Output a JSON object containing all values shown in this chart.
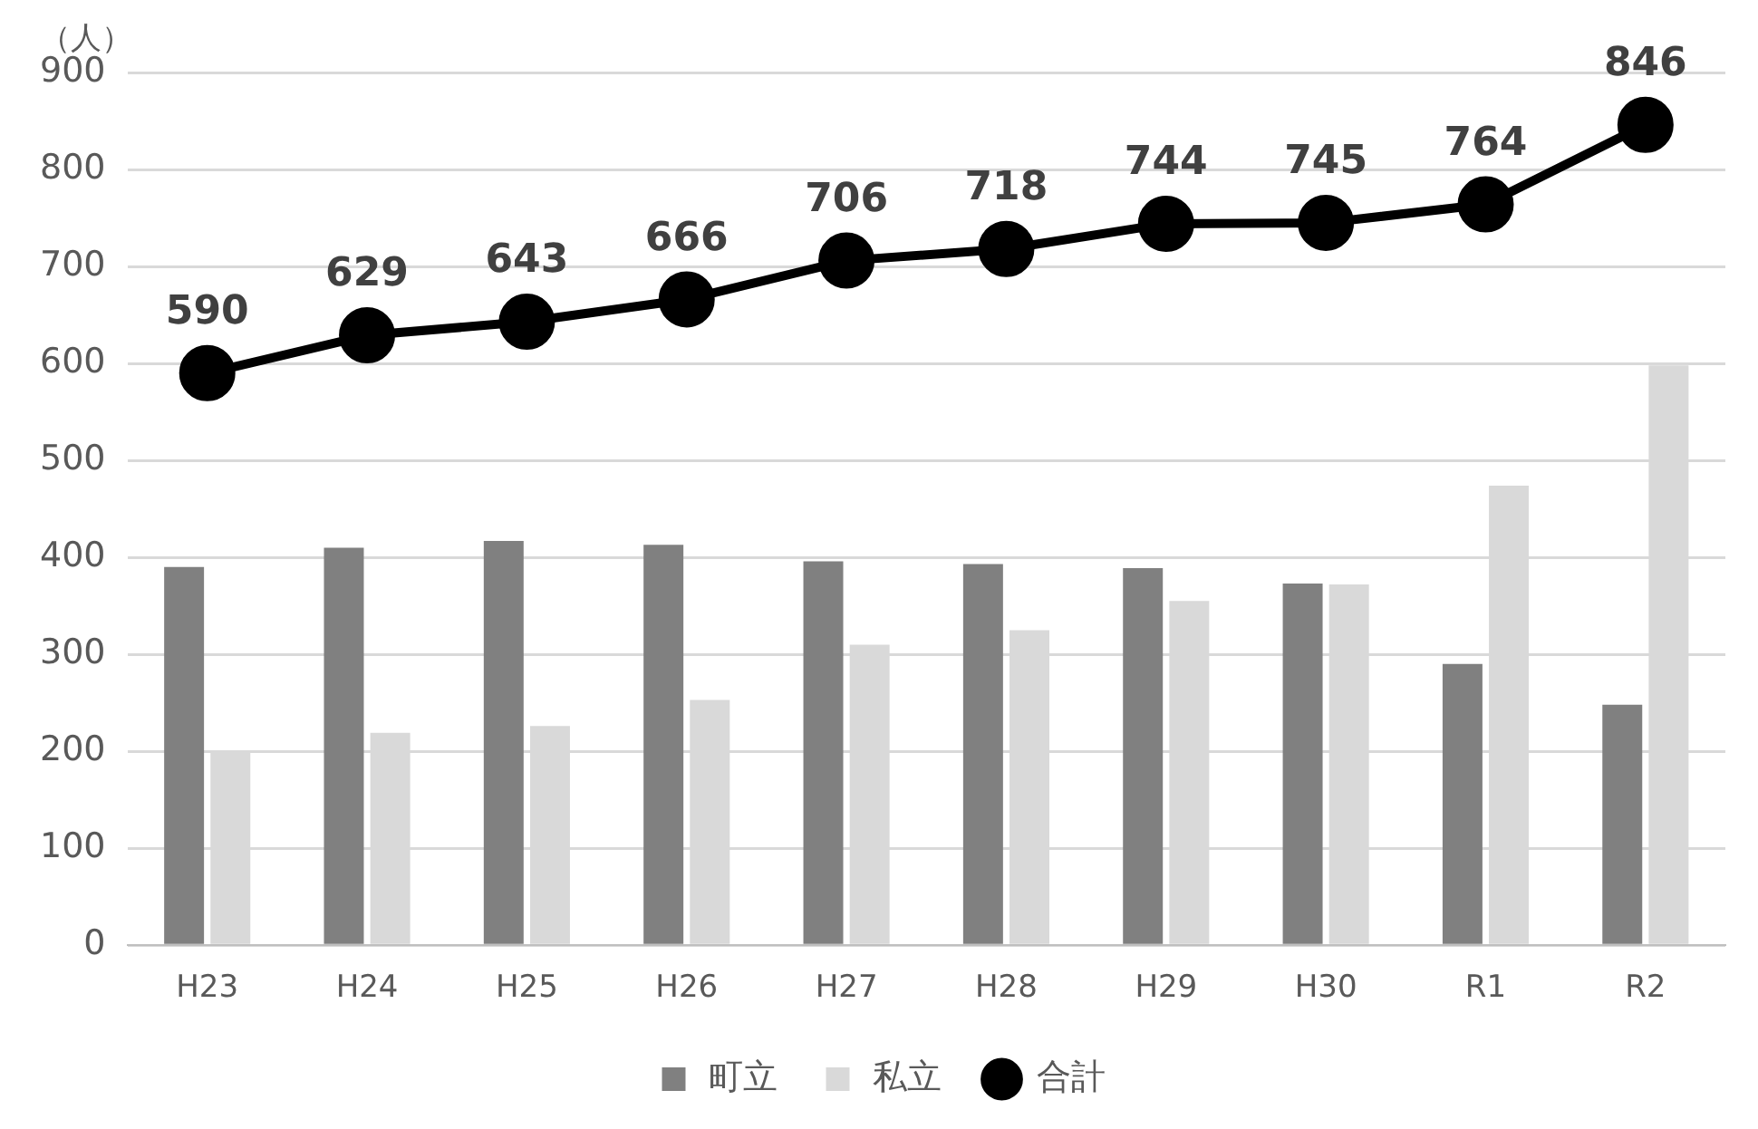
{
  "chart_data": {
    "type": "bar",
    "ylabel": "（人）",
    "categories": [
      "H23",
      "H24",
      "H25",
      "H26",
      "H27",
      "H28",
      "H29",
      "H30",
      "R1",
      "R2"
    ],
    "series": [
      {
        "name": "町立",
        "color": "#808080",
        "values": [
          390,
          410,
          417,
          413,
          396,
          393,
          389,
          373,
          290,
          248
        ]
      },
      {
        "name": "私立",
        "color": "#d9d9d9",
        "values": [
          200,
          219,
          226,
          253,
          310,
          325,
          355,
          372,
          474,
          598
        ]
      },
      {
        "name": "合計",
        "type": "line",
        "color": "#000000",
        "values": [
          590,
          629,
          643,
          666,
          706,
          718,
          744,
          745,
          764,
          846
        ],
        "value_labels": [
          "590",
          "629",
          "643",
          "666",
          "706",
          "718",
          "744",
          "745",
          "764",
          "846"
        ]
      }
    ],
    "ylim": [
      0,
      900
    ],
    "yticks": [
      0,
      100,
      200,
      300,
      400,
      500,
      600,
      700,
      800,
      900
    ],
    "grid": "y",
    "legend": "bottom",
    "marker": "circle"
  }
}
